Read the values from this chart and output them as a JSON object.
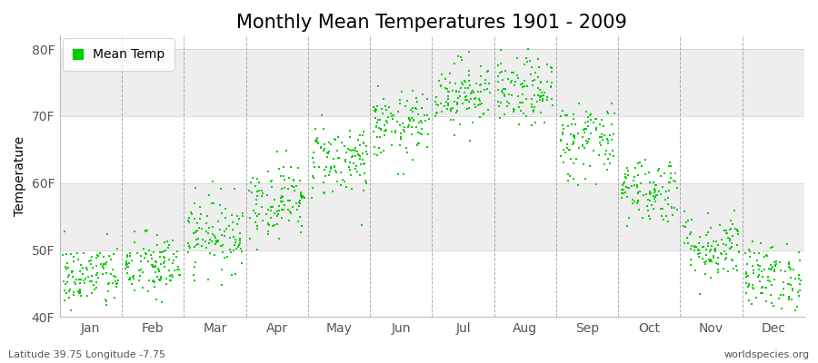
{
  "title": "Monthly Mean Temperatures 1901 - 2009",
  "ylabel": "Temperature",
  "xlabel_labels": [
    "Jan",
    "Feb",
    "Mar",
    "Apr",
    "May",
    "Jun",
    "Jul",
    "Aug",
    "Sep",
    "Oct",
    "Nov",
    "Dec"
  ],
  "ytick_labels": [
    "40F",
    "50F",
    "60F",
    "70F",
    "80F"
  ],
  "ytick_values": [
    40,
    50,
    60,
    70,
    80
  ],
  "ylim": [
    40,
    82
  ],
  "xlim": [
    0,
    12
  ],
  "legend_label": "Mean Temp",
  "dot_color": "#00cc00",
  "dot_size": 3,
  "fig_bg_color": "#ffffff",
  "plot_bg_color": "#ffffff",
  "band_color": "#eeeeee",
  "footer_left": "Latitude 39.75 Longitude -7.75",
  "footer_right": "worldspecies.org",
  "monthly_means": [
    46.0,
    47.5,
    52.5,
    57.5,
    63.5,
    68.5,
    73.5,
    73.5,
    66.5,
    59.0,
    50.5,
    46.0
  ],
  "monthly_stds": [
    2.5,
    2.5,
    2.8,
    2.8,
    2.8,
    2.5,
    2.5,
    2.5,
    3.0,
    2.5,
    2.5,
    2.5
  ],
  "n_years": 109,
  "seed": 42,
  "title_fontsize": 15,
  "axis_fontsize": 10,
  "tick_fontsize": 10,
  "footer_fontsize": 8,
  "dashed_color": "#888888",
  "vline_positions": [
    1,
    2,
    3,
    4,
    5,
    6,
    7,
    8,
    9,
    10,
    11
  ]
}
